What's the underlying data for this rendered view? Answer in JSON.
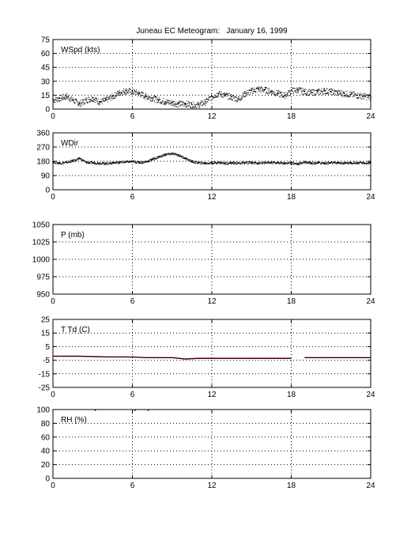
{
  "figure": {
    "title": "Juneau EC Meteogram:   January 16, 1999",
    "background": "#ffffff"
  },
  "chart_data": [
    {
      "type": "scatter",
      "panel_label": "WSpd (kts)",
      "xlabel": "",
      "ylabel": "",
      "xlim": [
        0,
        24
      ],
      "xticks": [
        0,
        6,
        12,
        18,
        24
      ],
      "ylim": [
        0,
        75
      ],
      "yticks": [
        0,
        15,
        30,
        45,
        60,
        75
      ],
      "grid": true,
      "series": [
        {
          "color": "#000000",
          "marker": "dot",
          "x": [
            0,
            0.5,
            1,
            1.5,
            2,
            2.5,
            3,
            3.5,
            4,
            4.5,
            5,
            5.5,
            6,
            6.5,
            7,
            7.5,
            8,
            8.5,
            9,
            9.5,
            10,
            10.5,
            11,
            11.5,
            12,
            12.5,
            13,
            13.5,
            14,
            14.5,
            15,
            15.5,
            16,
            16.5,
            17,
            17.5,
            18,
            18.5,
            19,
            19.5,
            20,
            20.5,
            21,
            21.5,
            22,
            22.5,
            23,
            23.5,
            24
          ],
          "values": [
            10,
            12,
            14,
            10,
            6,
            10,
            12,
            8,
            10,
            14,
            18,
            20,
            19,
            17,
            14,
            12,
            10,
            8,
            7,
            6,
            6,
            5,
            5,
            8,
            14,
            17,
            15,
            13,
            11,
            17,
            20,
            22,
            21,
            19,
            17,
            15,
            20,
            21,
            19,
            18,
            19,
            20,
            19,
            18,
            17,
            16,
            15,
            14,
            13
          ]
        }
      ]
    },
    {
      "type": "scatter",
      "panel_label": "WDir",
      "xlabel": "",
      "ylabel": "",
      "xlim": [
        0,
        24
      ],
      "xticks": [
        0,
        6,
        12,
        18,
        24
      ],
      "ylim": [
        0,
        360
      ],
      "yticks": [
        0,
        90,
        180,
        270,
        360
      ],
      "grid": true,
      "series": [
        {
          "color": "#000000",
          "marker": "dot",
          "x": [
            0,
            0.5,
            1,
            1.5,
            2,
            2.5,
            3,
            3.5,
            4,
            4.5,
            5,
            5.5,
            6,
            6.5,
            7,
            7.5,
            8,
            8.5,
            9,
            9.5,
            10,
            10.5,
            11,
            11.5,
            12,
            12.5,
            13,
            13.5,
            14,
            14.5,
            15,
            15.5,
            16,
            16.5,
            17,
            17.5,
            18,
            18.5,
            19,
            19.5,
            20,
            20.5,
            21,
            21.5,
            22,
            22.5,
            23,
            23.5,
            24
          ],
          "values": [
            178,
            170,
            175,
            185,
            200,
            175,
            172,
            170,
            168,
            172,
            175,
            178,
            180,
            175,
            178,
            195,
            210,
            225,
            230,
            220,
            200,
            180,
            172,
            170,
            172,
            174,
            170,
            172,
            170,
            172,
            174,
            170,
            172,
            174,
            172,
            170,
            172,
            165,
            178,
            172,
            172,
            170,
            172,
            172,
            170,
            172,
            172,
            170,
            172
          ]
        }
      ]
    },
    {
      "type": "line",
      "panel_label": "P (mb)",
      "xlabel": "",
      "ylabel": "",
      "xlim": [
        0,
        24
      ],
      "xticks": [
        0,
        6,
        12,
        18,
        24
      ],
      "ylim": [
        950,
        1050
      ],
      "yticks": [
        950,
        975,
        1000,
        1025,
        1050
      ],
      "grid": true,
      "series": []
    },
    {
      "type": "line",
      "panel_label": "T Td (C)",
      "xlabel": "",
      "ylabel": "",
      "xlim": [
        0,
        24
      ],
      "xticks": [
        0,
        6,
        12,
        18,
        24
      ],
      "ylim": [
        -25,
        25
      ],
      "yticks": [
        -25,
        -15,
        -5,
        5,
        15,
        25
      ],
      "grid": true,
      "series": [
        {
          "color": "#ff0000",
          "x": [
            0,
            2,
            4,
            6,
            7,
            8,
            9,
            10,
            11,
            12,
            14,
            16,
            18,
            18.5,
            19,
            20,
            22,
            24
          ],
          "values": [
            -2,
            -2,
            -2.5,
            -2.5,
            -3,
            -3,
            -3,
            -4,
            -3.5,
            -3.5,
            -3.5,
            -3.5,
            -3.5,
            null,
            -3,
            -3,
            -3,
            -3
          ]
        },
        {
          "color": "#000000",
          "x": [
            0,
            2,
            4,
            6,
            7,
            8,
            9,
            10,
            11,
            12,
            14,
            16,
            18,
            18.5,
            19,
            20,
            22,
            24
          ],
          "values": [
            -2.2,
            -2.2,
            -2.7,
            -2.7,
            -3.2,
            -3.2,
            -3.2,
            -4.2,
            -3.7,
            -3.7,
            -3.7,
            -3.7,
            -3.7,
            null,
            -3.2,
            -3.2,
            -3.2,
            -3.2
          ]
        }
      ]
    },
    {
      "type": "scatter",
      "panel_label": "RH (%)",
      "xlabel": "",
      "ylabel": "",
      "xlim": [
        0,
        24
      ],
      "xticks": [
        0,
        6,
        12,
        18,
        24
      ],
      "ylim": [
        0,
        100
      ],
      "yticks": [
        0,
        20,
        40,
        60,
        80,
        100
      ],
      "grid": true,
      "series": [
        {
          "color": "#000000",
          "marker": "dot",
          "x": [
            3.2,
            6.2,
            7.2
          ],
          "values": [
            99,
            99,
            99
          ]
        }
      ]
    }
  ]
}
